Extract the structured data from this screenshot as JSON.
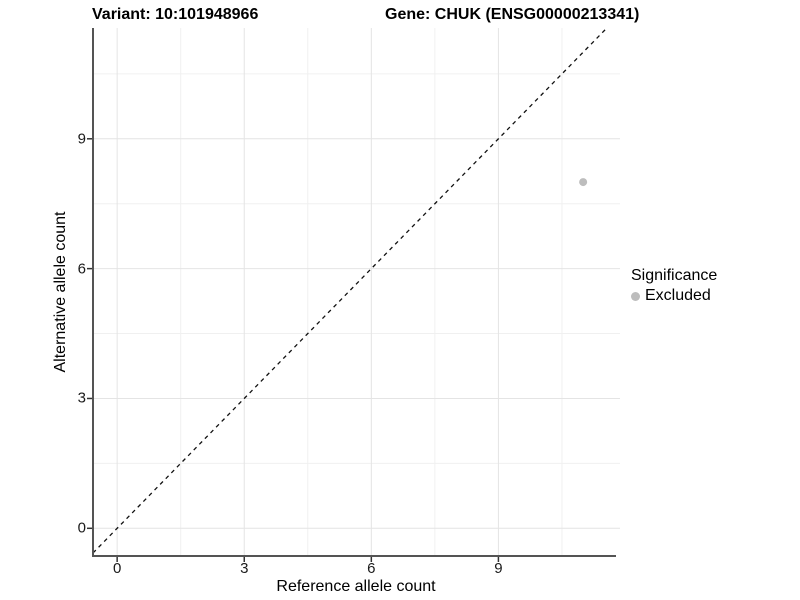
{
  "titles": {
    "variant": "Variant: 10:101948966",
    "gene": "Gene: CHUK (ENSG00000213341)"
  },
  "legend": {
    "title": "Significance",
    "items": [
      {
        "label": "Excluded",
        "color": "#bdbdbd"
      }
    ]
  },
  "chart_data": {
    "type": "scatter",
    "title": "Variant: 10:101948966 | Gene: CHUK (ENSG00000213341)",
    "xlabel": "Reference allele count",
    "ylabel": "Alternative allele count",
    "x_ticks": [
      0,
      3,
      6,
      9
    ],
    "y_ticks": [
      0,
      3,
      6,
      9
    ],
    "x_minor_ticks": [
      1.5,
      4.5,
      7.5,
      10.5
    ],
    "y_minor_ticks": [
      1.5,
      4.5,
      7.5,
      10.5
    ],
    "xlim": [
      -0.57,
      11.87
    ],
    "ylim": [
      -0.64,
      11.56
    ],
    "grid": "major+minor",
    "legend_position": "right",
    "series": [
      {
        "name": "Excluded",
        "color": "#bdbdbd",
        "points": [
          {
            "x": 11,
            "y": 8
          }
        ]
      }
    ],
    "reference_line": {
      "type": "identity",
      "slope": 1,
      "intercept": 0,
      "style": "dashed",
      "color": "#111111"
    }
  },
  "colors": {
    "axis_line": "#545454",
    "tick_mark": "#333333",
    "grid_major": "#e4e4e4",
    "grid_minor": "#f0f0f0",
    "background": "#ffffff"
  }
}
